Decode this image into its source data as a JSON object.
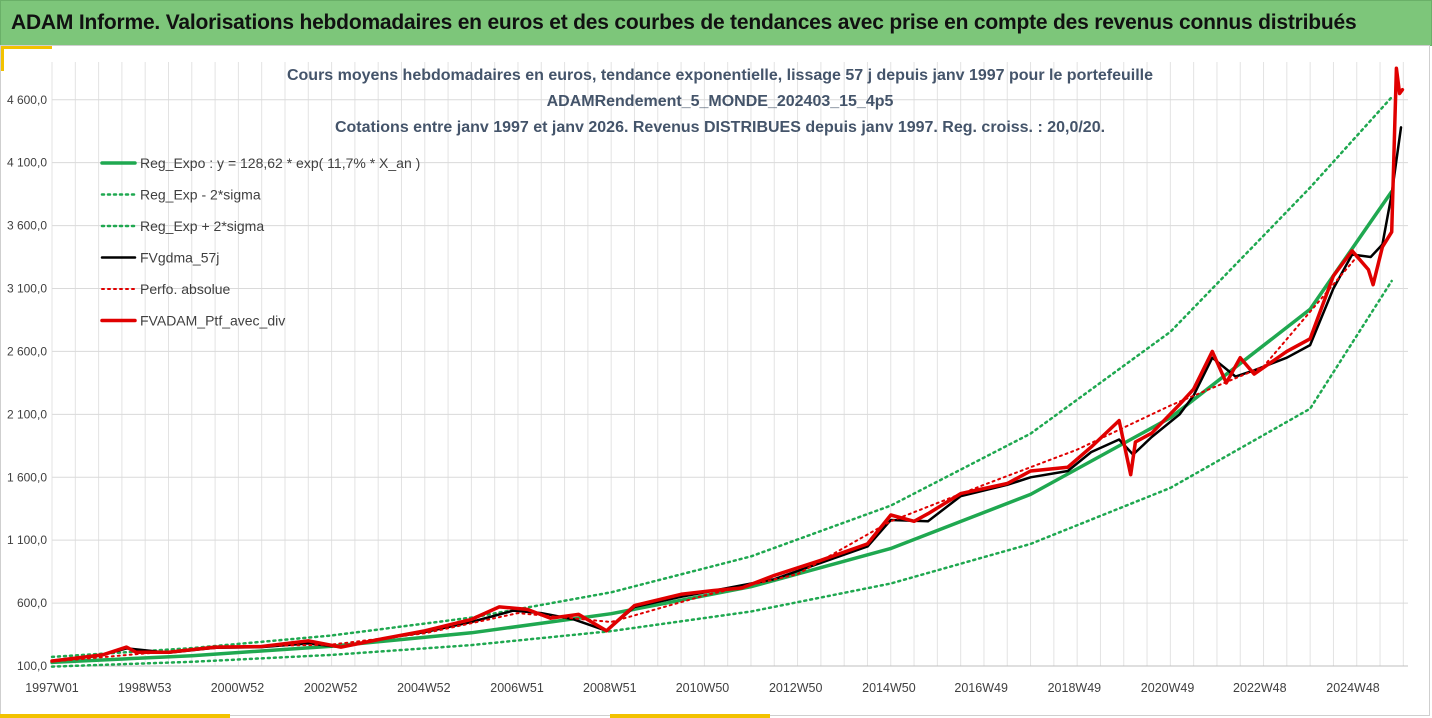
{
  "banner": {
    "title": "ADAM Informe. Valorisations hebdomadaires en euros et des courbes de tendances avec prise en compte des revenus connus distribués"
  },
  "chart_data": {
    "type": "line",
    "title_lines": [
      "Cours moyens hebdomadaires  en euros, tendance exponentielle, lissage 57 j depuis janv 1997 pour le portefeuille",
      "ADAMRendement_5_MONDE_202403_15_4p5",
      "Cotations entre janv 1997 et janv 2026. Revenus DISTRIBUES depuis janv 1997. Reg. croiss. : 20,0/20."
    ],
    "ylim": [
      100,
      4900
    ],
    "y_ticks": [
      100,
      600,
      1100,
      1600,
      2100,
      2600,
      3100,
      3600,
      4100,
      4600
    ],
    "y_tick_labels": [
      "100,0",
      "600,0",
      "1 100,0",
      "1 600,0",
      "2 100,0",
      "2 600,0",
      "3 100,0",
      "3 600,0",
      "4 100,0",
      "4 600,0"
    ],
    "xlim": [
      1997.0,
      2026.1
    ],
    "x_tick_positions": [
      1997.0,
      1998.99,
      2000.98,
      2002.98,
      2004.98,
      2006.98,
      2008.97,
      2010.96,
      2012.96,
      2014.96,
      2016.94,
      2018.94,
      2020.94,
      2022.92,
      2024.92
    ],
    "x_tick_labels": [
      "1997W01",
      "1998W53",
      "2000W52",
      "2002W52",
      "2004W52",
      "2006W51",
      "2008W51",
      "2010W50",
      "2012W50",
      "2014W50",
      "2016W49",
      "2018W49",
      "2020W49",
      "2022W48",
      "2024W48"
    ],
    "grid": true,
    "legend_position": "top-left",
    "series": [
      {
        "name": "Reg_Expo : y = 128,62 * exp( 11,7% *  X_an )",
        "color": "#1fa850",
        "style": "solid",
        "width": 3.5,
        "x": [
          1997,
          2000,
          2003,
          2006,
          2009,
          2012,
          2015,
          2018,
          2021,
          2024,
          2025.75
        ],
        "y": [
          128.6,
          182,
          257,
          364,
          516,
          730,
          1034,
          1464,
          2073,
          2935,
          3871
        ]
      },
      {
        "name": "Reg_Exp - 2*sigma",
        "color": "#1fa850",
        "style": "dotted",
        "width": 2.5,
        "x": [
          1997,
          2000,
          2003,
          2006,
          2009,
          2012,
          2015,
          2018,
          2021,
          2024,
          2025.75
        ],
        "y": [
          95,
          133,
          188,
          266,
          377,
          533,
          756,
          1070,
          1515,
          2145,
          3160
        ]
      },
      {
        "name": "Reg_Exp + 2*sigma",
        "color": "#1fa850",
        "style": "dotted",
        "width": 2.5,
        "x": [
          1997,
          2000,
          2003,
          2006,
          2009,
          2012,
          2015,
          2018,
          2021,
          2024,
          2025.75
        ],
        "y": [
          172,
          242,
          342,
          485,
          686,
          971,
          1375,
          1947,
          2756,
          3902,
          4620
        ]
      },
      {
        "name": "FVgdma_57j",
        "color": "#000000",
        "style": "solid",
        "width": 2.5,
        "x": [
          1997,
          1998,
          1998.6,
          1999.5,
          2000.5,
          2001.5,
          2002.5,
          2003.2,
          2004.0,
          2005.0,
          2006.0,
          2006.9,
          2007.5,
          2008.2,
          2008.9,
          2009.5,
          2010.5,
          2011.5,
          2012.5,
          2013.5,
          2014.5,
          2015.0,
          2015.8,
          2016.5,
          2017.5,
          2018.0,
          2018.8,
          2019.3,
          2019.9,
          2020.2,
          2020.6,
          2021.2,
          2021.5,
          2021.9,
          2022.4,
          2022.8,
          2023.5,
          2024.0,
          2024.5,
          2024.9,
          2025.3,
          2025.55,
          2025.75,
          2025.95
        ],
        "y": [
          140,
          180,
          240,
          205,
          245,
          250,
          280,
          250,
          310,
          370,
          450,
          540,
          520,
          470,
          380,
          570,
          650,
          720,
          790,
          920,
          1050,
          1260,
          1250,
          1450,
          1540,
          1600,
          1650,
          1800,
          1900,
          1780,
          1920,
          2100,
          2250,
          2550,
          2400,
          2450,
          2550,
          2650,
          3100,
          3370,
          3350,
          3450,
          3850,
          4380
        ]
      },
      {
        "name": "Perfo. absolue",
        "color": "#e00000",
        "style": "dotted",
        "width": 2,
        "x": [
          1997,
          1999,
          2001,
          2003,
          2005,
          2007,
          2009,
          2011,
          2013,
          2015,
          2017,
          2019,
          2021,
          2023,
          2025
        ],
        "y": [
          135,
          200,
          255,
          270,
          360,
          520,
          450,
          660,
          830,
          1250,
          1540,
          1820,
          2170,
          2480,
          3350
        ]
      },
      {
        "name": "FVADAM_Ptf_avec_div",
        "color": "#e00000",
        "style": "solid",
        "width": 3.5,
        "x": [
          1997,
          1998.1,
          1998.6,
          1998.8,
          1999.5,
          2000.5,
          2001.5,
          2002.5,
          2003.2,
          2004.0,
          2005.0,
          2006.0,
          2006.6,
          2007.2,
          2007.7,
          2008.3,
          2008.9,
          2009.5,
          2010.5,
          2011.2,
          2011.8,
          2012.5,
          2013.5,
          2014.5,
          2015.0,
          2015.5,
          2015.8,
          2016.5,
          2017.5,
          2018.0,
          2018.8,
          2019.3,
          2019.9,
          2020.15,
          2020.25,
          2020.6,
          2021.2,
          2021.5,
          2021.9,
          2022.2,
          2022.5,
          2022.8,
          2023.5,
          2024.0,
          2024.5,
          2024.9,
          2025.25,
          2025.35,
          2025.55,
          2025.75,
          2025.85,
          2025.92,
          2025.98
        ],
        "y": [
          140,
          190,
          250,
          210,
          210,
          250,
          255,
          300,
          250,
          310,
          380,
          470,
          570,
          550,
          480,
          510,
          380,
          580,
          670,
          700,
          720,
          820,
          940,
          1070,
          1300,
          1250,
          1310,
          1470,
          1550,
          1650,
          1680,
          1840,
          2050,
          1620,
          1880,
          1950,
          2180,
          2300,
          2600,
          2350,
          2550,
          2420,
          2600,
          2700,
          3200,
          3400,
          3250,
          3130,
          3430,
          3550,
          4850,
          4650,
          4680
        ]
      }
    ]
  }
}
